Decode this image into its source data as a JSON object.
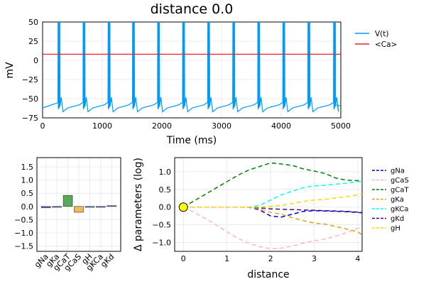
{
  "figure_title": "distance 0.0",
  "colors": {
    "voltage": "#009AFA",
    "calcium": "#E3242B",
    "gNa": "#0000CD",
    "gCaS": "#FFB6C1",
    "gCaT": "#008000",
    "gKa": "#DAA520",
    "gKCa": "#00FFFF",
    "gKd": "#4B0082",
    "gH": "#FFD700",
    "bar_neg": "#4F6FC4",
    "bar_pos_caT": "#5AA85A",
    "bar_caS": "#F4BA5A",
    "marker": "#FFFF00"
  },
  "chart_data": [
    {
      "type": "line",
      "title": "distance 0.0",
      "xlabel": "Time (ms)",
      "ylabel": "mV",
      "xlim": [
        0,
        5000
      ],
      "ylim": [
        -75,
        50
      ],
      "xticks": [
        0,
        1000,
        2000,
        3000,
        4000,
        5000
      ],
      "yticks": [
        -75,
        -50,
        -25,
        0,
        25,
        50
      ],
      "grid": true,
      "legend": "outside-right",
      "burst_times_ms": [
        260,
        680,
        1100,
        1510,
        1930,
        2350,
        2770,
        3190,
        3610,
        4030,
        4450,
        4880
      ],
      "spikes_per_burst": 3,
      "spike_peak_mV": 50,
      "trough_mV": -67,
      "baseline_mV": -60,
      "series": [
        {
          "name": "V(t)",
          "color": "#009AFA"
        },
        {
          "name": "<Ca>",
          "color": "#E3242B",
          "value_mV": 8
        }
      ]
    },
    {
      "type": "bar",
      "categories": [
        "gNa",
        "gKa",
        "gCaT",
        "gCaS",
        "gH",
        "gKCa",
        "gKd"
      ],
      "values": [
        -0.05,
        -0.02,
        0.42,
        -0.22,
        -0.01,
        -0.01,
        0.03
      ],
      "ylim": [
        -1.7,
        1.85
      ],
      "yticks": [
        -1.5,
        -1.0,
        -0.5,
        0.0,
        0.5,
        1.0,
        1.5
      ],
      "grid": true
    },
    {
      "type": "line",
      "xlabel": "distance",
      "ylabel": "Δ parameters (log)",
      "xlim": [
        -0.2,
        4.1
      ],
      "ylim": [
        -1.25,
        1.4
      ],
      "xticks": [
        0,
        1,
        2,
        3,
        4
      ],
      "yticks": [
        -1.0,
        -0.5,
        0.0,
        0.5,
        1.0
      ],
      "grid": true,
      "legend": "outside-right",
      "start_point": {
        "x": 0,
        "y": 0
      },
      "x": [
        0,
        0.25,
        0.5,
        0.75,
        1.0,
        1.25,
        1.5,
        1.75,
        2.0,
        2.25,
        2.5,
        2.75,
        3.0,
        3.25,
        3.5,
        3.75,
        4.0,
        4.1
      ],
      "series": [
        {
          "name": "gNa",
          "color": "#0000CD",
          "values": [
            0,
            0,
            0,
            0,
            0,
            0,
            0,
            -0.08,
            -0.25,
            -0.28,
            -0.2,
            -0.12,
            -0.1,
            -0.11,
            -0.12,
            -0.13,
            -0.15,
            -0.16
          ]
        },
        {
          "name": "gCaS",
          "color": "#FFB6C1",
          "values": [
            0,
            -0.15,
            -0.32,
            -0.5,
            -0.7,
            -0.88,
            -1.02,
            -1.12,
            -1.18,
            -1.16,
            -1.1,
            -1.02,
            -0.95,
            -0.9,
            -0.82,
            -0.72,
            -0.6,
            -0.58
          ]
        },
        {
          "name": "gCaT",
          "color": "#008000",
          "values": [
            0,
            0.18,
            0.36,
            0.54,
            0.72,
            0.9,
            1.05,
            1.15,
            1.25,
            1.22,
            1.18,
            1.08,
            1.02,
            0.95,
            0.82,
            0.76,
            0.75,
            0.72
          ]
        },
        {
          "name": "gKa",
          "color": "#DAA520",
          "values": [
            0,
            0,
            0,
            0,
            0,
            0,
            -0.01,
            -0.05,
            -0.15,
            -0.2,
            -0.3,
            -0.38,
            -0.45,
            -0.48,
            -0.55,
            -0.62,
            -0.7,
            -0.78
          ]
        },
        {
          "name": "gKCa",
          "color": "#00FFFF",
          "values": [
            0,
            0,
            0,
            0,
            0,
            0,
            0,
            0.05,
            0.2,
            0.35,
            0.45,
            0.55,
            0.6,
            0.62,
            0.65,
            0.68,
            0.72,
            0.73
          ]
        },
        {
          "name": "gKd",
          "color": "#4B0082",
          "values": [
            0,
            0,
            0,
            0,
            0,
            0,
            0,
            -0.02,
            -0.05,
            -0.06,
            -0.07,
            -0.08,
            -0.09,
            -0.1,
            -0.11,
            -0.12,
            -0.14,
            -0.15
          ]
        },
        {
          "name": "gH",
          "color": "#FFD700",
          "values": [
            0,
            0,
            0,
            0,
            0,
            0,
            0,
            0,
            0.02,
            0.05,
            0.1,
            0.16,
            0.2,
            0.22,
            0.26,
            0.3,
            0.34,
            0.36
          ]
        }
      ]
    }
  ]
}
